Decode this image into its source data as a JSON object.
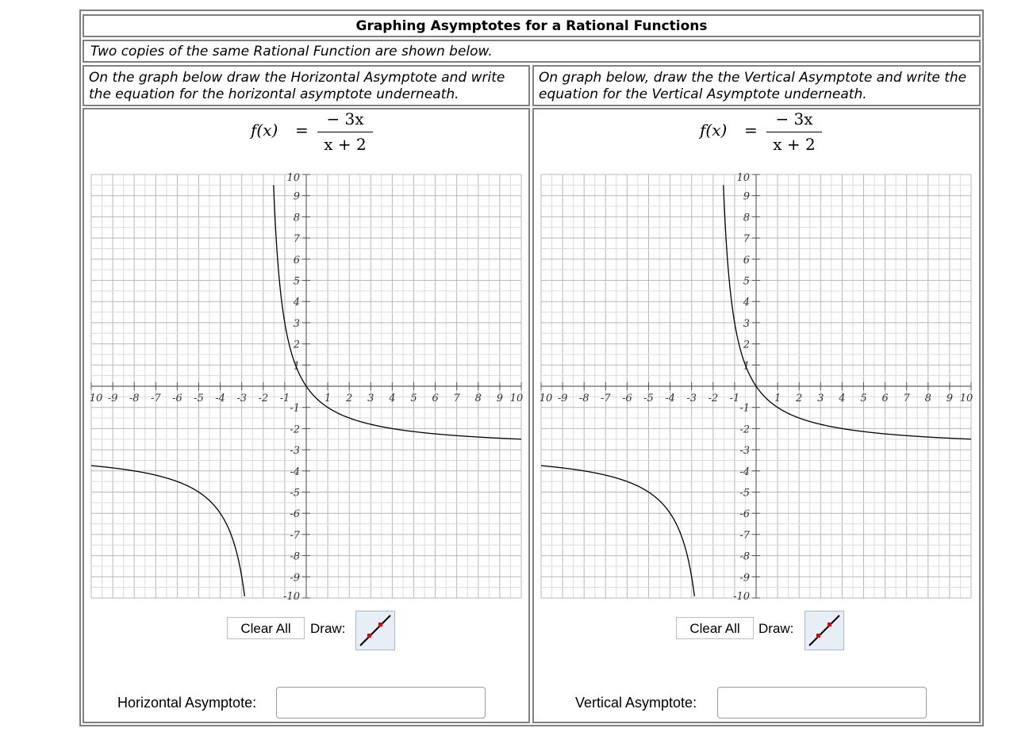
{
  "title": "Graphing Asymptotes for a Rational Functions",
  "intro": "Two copies of the same Rational Function are shown below.",
  "left_panel": {
    "instruction": "On the graph below draw the Horizontal Asymptote and write the equation for the horizontal asymptote underneath.",
    "formula": {
      "lhs": "f(x)",
      "eq": "=",
      "numerator": "− 3x",
      "denominator": "x + 2"
    },
    "clear_label": "Clear All",
    "draw_label": "Draw:",
    "draw_tool_icon": "line-segment-tool-icon",
    "answer_label": "Horizontal Asymptote:",
    "answer_value": "",
    "answer_placeholder": ""
  },
  "right_panel": {
    "instruction": "On graph below, draw the the Vertical Asymptote and write the equation for the Vertical Asymptote underneath.",
    "formula": {
      "lhs": "f(x)",
      "eq": "=",
      "numerator": "− 3x",
      "denominator": "x + 2"
    },
    "clear_label": "Clear All",
    "draw_label": "Draw:",
    "draw_tool_icon": "line-segment-tool-icon",
    "answer_label": "Vertical Asymptote:",
    "answer_value": "",
    "answer_placeholder": ""
  },
  "chart_data": [
    {
      "type": "line",
      "function": "-3x/(x+2)",
      "xlim": [
        -10,
        10
      ],
      "ylim": [
        -10,
        10
      ],
      "grid": true,
      "x_tick_labels": [
        "10",
        "-9",
        "-8",
        "-7",
        "-6",
        "-5",
        "-4",
        "-3",
        "-2",
        "-1",
        "1",
        "2",
        "3",
        "4",
        "5",
        "6",
        "7",
        "8",
        "9",
        "10"
      ],
      "y_tick_labels": [
        "10",
        "9",
        "8",
        "7",
        "6",
        "5",
        "4",
        "3",
        "2",
        "1",
        "-1",
        "-2",
        "-3",
        "-4",
        "-5",
        "-6",
        "-7",
        "-8",
        "-9",
        "-10"
      ]
    },
    {
      "type": "line",
      "function": "-3x/(x+2)",
      "xlim": [
        -10,
        10
      ],
      "ylim": [
        -10,
        10
      ],
      "grid": true,
      "x_tick_labels": [
        "10",
        "-9",
        "-8",
        "-7",
        "-6",
        "-5",
        "-4",
        "-3",
        "-2",
        "-1",
        "1",
        "2",
        "3",
        "4",
        "5",
        "6",
        "7",
        "8",
        "9",
        "10"
      ],
      "y_tick_labels": [
        "10",
        "9",
        "8",
        "7",
        "6",
        "5",
        "4",
        "3",
        "2",
        "1",
        "-1",
        "-2",
        "-3",
        "-4",
        "-5",
        "-6",
        "-7",
        "-8",
        "-9",
        "-10"
      ]
    }
  ]
}
